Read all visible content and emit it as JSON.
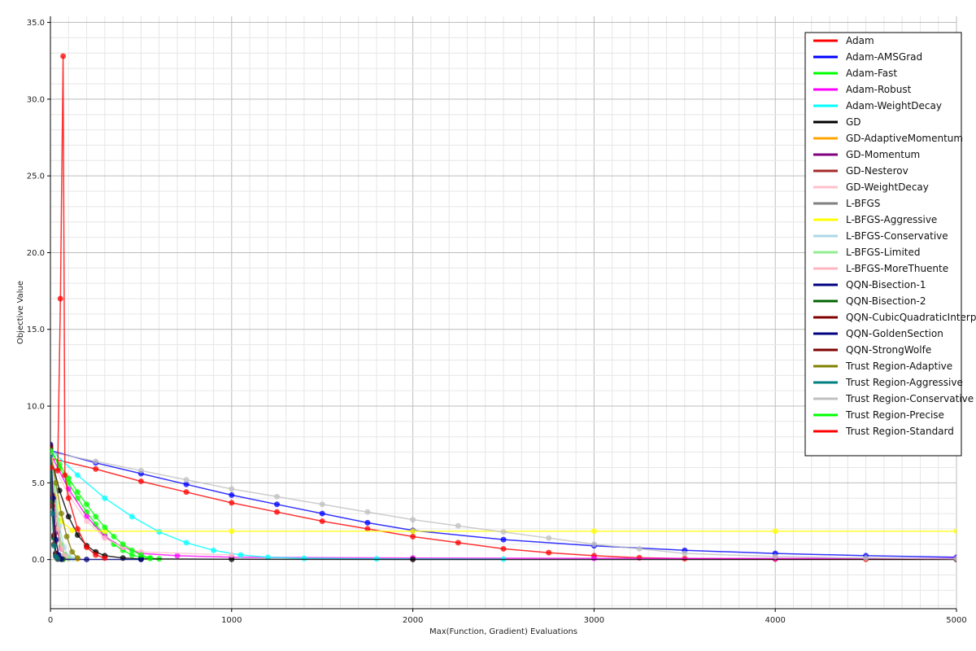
{
  "chart_data": {
    "type": "line",
    "title": "",
    "xlabel": "Max(Function, Gradient) Evaluations",
    "ylabel": "Objective Value",
    "xlim": [
      0,
      5000
    ],
    "ylim": [
      -3.2,
      35.4
    ],
    "x_ticks": [
      0,
      1000,
      2000,
      3000,
      4000,
      5000
    ],
    "x_tick_labels": [
      "0",
      "1000",
      "2000",
      "3000",
      "4000",
      "5000"
    ],
    "y_ticks": [
      0,
      5,
      10,
      15,
      20,
      25,
      30,
      35
    ],
    "y_tick_labels": [
      "0.0",
      "5.0",
      "10.0",
      "15.0",
      "20.0",
      "25.0",
      "30.0",
      "35.0"
    ],
    "grid": true,
    "legend_position": "top-right",
    "series": [
      {
        "name": "Adam",
        "color": "#ff0000",
        "points": [
          [
            0,
            6.6
          ],
          [
            250,
            5.9
          ],
          [
            500,
            5.1
          ],
          [
            750,
            4.4
          ],
          [
            1000,
            3.7
          ],
          [
            1250,
            3.1
          ],
          [
            1500,
            2.5
          ],
          [
            1750,
            2.0
          ],
          [
            2000,
            1.5
          ],
          [
            2250,
            1.1
          ],
          [
            2500,
            0.7
          ],
          [
            2750,
            0.45
          ],
          [
            3000,
            0.25
          ],
          [
            3250,
            0.12
          ],
          [
            3500,
            0.06
          ],
          [
            4000,
            0.03
          ],
          [
            4500,
            0.02
          ],
          [
            5000,
            0.02
          ]
        ]
      },
      {
        "name": "Adam-AMSGrad",
        "color": "#0000ff",
        "points": [
          [
            0,
            7.1
          ],
          [
            250,
            6.3
          ],
          [
            500,
            5.6
          ],
          [
            750,
            4.9
          ],
          [
            1000,
            4.2
          ],
          [
            1250,
            3.6
          ],
          [
            1500,
            3.0
          ],
          [
            1750,
            2.4
          ],
          [
            2000,
            1.9
          ],
          [
            2500,
            1.3
          ],
          [
            3000,
            0.9
          ],
          [
            3500,
            0.6
          ],
          [
            4000,
            0.4
          ],
          [
            4500,
            0.25
          ],
          [
            5000,
            0.15
          ]
        ]
      },
      {
        "name": "Adam-Fast",
        "color": "#00ff00",
        "points": [
          [
            0,
            7.3
          ],
          [
            50,
            6.0
          ],
          [
            100,
            5.0
          ],
          [
            150,
            4.0
          ],
          [
            200,
            3.1
          ],
          [
            250,
            2.3
          ],
          [
            300,
            1.6
          ],
          [
            350,
            1.0
          ],
          [
            400,
            0.6
          ],
          [
            450,
            0.3
          ],
          [
            500,
            0.15
          ],
          [
            550,
            0.08
          ],
          [
            600,
            0.05
          ]
        ]
      },
      {
        "name": "Adam-Robust",
        "color": "#ff00ff",
        "points": [
          [
            0,
            6.9
          ],
          [
            100,
            4.6
          ],
          [
            200,
            2.8
          ],
          [
            300,
            1.5
          ],
          [
            400,
            0.8
          ],
          [
            500,
            0.4
          ],
          [
            700,
            0.25
          ],
          [
            1000,
            0.15
          ],
          [
            2000,
            0.1
          ],
          [
            3000,
            0.08
          ],
          [
            4000,
            0.07
          ],
          [
            5000,
            0.07
          ]
        ]
      },
      {
        "name": "Adam-WeightDecay",
        "color": "#00ffff",
        "points": [
          [
            0,
            7.2
          ],
          [
            150,
            5.5
          ],
          [
            300,
            4.0
          ],
          [
            450,
            2.8
          ],
          [
            600,
            1.8
          ],
          [
            750,
            1.1
          ],
          [
            900,
            0.6
          ],
          [
            1050,
            0.3
          ],
          [
            1200,
            0.15
          ],
          [
            1400,
            0.08
          ],
          [
            1800,
            0.05
          ],
          [
            2500,
            0.03
          ]
        ]
      },
      {
        "name": "GD",
        "color": "#000000",
        "points": [
          [
            0,
            6.8
          ],
          [
            50,
            4.5
          ],
          [
            100,
            2.8
          ],
          [
            150,
            1.6
          ],
          [
            200,
            0.9
          ],
          [
            250,
            0.5
          ],
          [
            300,
            0.25
          ],
          [
            400,
            0.1
          ],
          [
            500,
            0.05
          ],
          [
            1000,
            0.02
          ],
          [
            2000,
            0.01
          ],
          [
            5000,
            0.01
          ]
        ]
      },
      {
        "name": "GD-AdaptiveMomentum",
        "color": "#ffa500",
        "points": [
          [
            0,
            6.5
          ],
          [
            20,
            4.0
          ],
          [
            40,
            2.0
          ],
          [
            60,
            0.8
          ],
          [
            80,
            0.3
          ],
          [
            100,
            0.1
          ],
          [
            150,
            0.05
          ]
        ]
      },
      {
        "name": "GD-Momentum",
        "color": "#800080",
        "points": [
          [
            0,
            6.7
          ],
          [
            20,
            3.8
          ],
          [
            40,
            1.8
          ],
          [
            60,
            0.7
          ],
          [
            80,
            0.25
          ],
          [
            100,
            0.08
          ]
        ]
      },
      {
        "name": "GD-Nesterov",
        "color": "#a52a2a",
        "points": [
          [
            0,
            6.9
          ],
          [
            20,
            4.1
          ],
          [
            40,
            2.1
          ],
          [
            60,
            0.9
          ],
          [
            80,
            0.3
          ],
          [
            100,
            0.1
          ]
        ]
      },
      {
        "name": "GD-WeightDecay",
        "color": "#ffc0cb",
        "points": [
          [
            0,
            6.6
          ],
          [
            100,
            4.2
          ],
          [
            200,
            2.5
          ],
          [
            300,
            1.4
          ],
          [
            400,
            0.8
          ],
          [
            500,
            0.5
          ],
          [
            1000,
            0.3
          ]
        ]
      },
      {
        "name": "L-BFGS",
        "color": "#808080",
        "points": [
          [
            0,
            6.3
          ],
          [
            15,
            3.5
          ],
          [
            30,
            1.2
          ],
          [
            45,
            0.3
          ],
          [
            60,
            0.05
          ]
        ]
      },
      {
        "name": "L-BFGS-Aggressive",
        "color": "#ffff00",
        "points": [
          [
            0,
            6.0
          ],
          [
            60,
            2.5
          ],
          [
            120,
            1.9
          ],
          [
            300,
            1.85
          ],
          [
            1000,
            1.85
          ],
          [
            2000,
            1.85
          ],
          [
            3000,
            1.85
          ],
          [
            4000,
            1.85
          ],
          [
            5000,
            1.85
          ]
        ]
      },
      {
        "name": "L-BFGS-Conservative",
        "color": "#add8e6",
        "points": [
          [
            0,
            6.8
          ],
          [
            25,
            4.5
          ],
          [
            50,
            2.2
          ],
          [
            75,
            0.8
          ],
          [
            100,
            0.2
          ],
          [
            125,
            0.05
          ]
        ]
      },
      {
        "name": "L-BFGS-Limited",
        "color": "#90ee90",
        "points": [
          [
            0,
            7.0
          ],
          [
            20,
            4.8
          ],
          [
            40,
            2.6
          ],
          [
            60,
            1.0
          ],
          [
            80,
            0.3
          ],
          [
            100,
            0.08
          ]
        ]
      },
      {
        "name": "L-BFGS-MoreThuente",
        "color": "#ffb6c1",
        "points": [
          [
            0,
            6.4
          ],
          [
            20,
            4.0
          ],
          [
            40,
            2.0
          ],
          [
            60,
            0.7
          ],
          [
            80,
            0.2
          ]
        ]
      },
      {
        "name": "QQN-Bisection-1",
        "color": "#000080",
        "points": [
          [
            0,
            7.2
          ],
          [
            10,
            4.0
          ],
          [
            20,
            1.5
          ],
          [
            30,
            0.4
          ],
          [
            40,
            0.08
          ],
          [
            60,
            0.02
          ],
          [
            200,
            0.01
          ],
          [
            500,
            0.01
          ]
        ]
      },
      {
        "name": "QQN-Bisection-2",
        "color": "#006400",
        "points": [
          [
            0,
            7.0
          ],
          [
            10,
            3.8
          ],
          [
            20,
            1.4
          ],
          [
            30,
            0.3
          ],
          [
            40,
            0.05
          ],
          [
            70,
            0.02
          ]
        ]
      },
      {
        "name": "QQN-CubicQuadraticInterpolation",
        "color": "#800000",
        "points": [
          [
            0,
            7.4
          ],
          [
            10,
            4.2
          ],
          [
            20,
            1.6
          ],
          [
            30,
            0.4
          ],
          [
            40,
            0.08
          ]
        ]
      },
      {
        "name": "QQN-GoldenSection",
        "color": "#000080",
        "points": [
          [
            0,
            7.5
          ],
          [
            15,
            4.0
          ],
          [
            30,
            1.3
          ],
          [
            45,
            0.3
          ],
          [
            60,
            0.05
          ]
        ]
      },
      {
        "name": "QQN-StrongWolfe",
        "color": "#800000",
        "points": [
          [
            0,
            7.3
          ],
          [
            10,
            3.5
          ],
          [
            20,
            1.0
          ],
          [
            30,
            0.2
          ],
          [
            40,
            0.03
          ]
        ]
      },
      {
        "name": "Trust Region-Adaptive",
        "color": "#808000",
        "points": [
          [
            0,
            6.9
          ],
          [
            30,
            5.0
          ],
          [
            60,
            3.0
          ],
          [
            90,
            1.5
          ],
          [
            120,
            0.5
          ],
          [
            150,
            0.1
          ]
        ]
      },
      {
        "name": "Trust Region-Aggressive",
        "color": "#008080",
        "points": [
          [
            0,
            6.8
          ],
          [
            10,
            3.0
          ],
          [
            20,
            0.9
          ],
          [
            30,
            0.2
          ],
          [
            40,
            0.05
          ]
        ]
      },
      {
        "name": "Trust Region-Conservative",
        "color": "#c0c0c0",
        "points": [
          [
            0,
            7.0
          ],
          [
            250,
            6.4
          ],
          [
            500,
            5.8
          ],
          [
            750,
            5.2
          ],
          [
            1000,
            4.6
          ],
          [
            1250,
            4.1
          ],
          [
            1500,
            3.6
          ],
          [
            1750,
            3.1
          ],
          [
            2000,
            2.6
          ],
          [
            2250,
            2.2
          ],
          [
            2500,
            1.8
          ],
          [
            2750,
            1.4
          ],
          [
            3000,
            1.0
          ],
          [
            3250,
            0.7
          ],
          [
            3500,
            0.4
          ],
          [
            4000,
            0.2
          ],
          [
            4500,
            0.1
          ],
          [
            5000,
            0.05
          ]
        ]
      },
      {
        "name": "Trust Region-Precise",
        "color": "#00ff00",
        "points": [
          [
            0,
            7.1
          ],
          [
            50,
            6.2
          ],
          [
            100,
            5.3
          ],
          [
            150,
            4.4
          ],
          [
            200,
            3.6
          ],
          [
            250,
            2.8
          ],
          [
            300,
            2.1
          ],
          [
            350,
            1.5
          ],
          [
            400,
            1.0
          ],
          [
            450,
            0.6
          ],
          [
            500,
            0.3
          ],
          [
            550,
            0.1
          ]
        ]
      },
      {
        "name": "Trust Region-Standard",
        "color": "#ff0000",
        "points": [
          [
            0,
            6.0
          ],
          [
            40,
            5.8
          ],
          [
            55,
            17.0
          ],
          [
            70,
            32.8
          ],
          [
            80,
            5.5
          ],
          [
            100,
            4.0
          ],
          [
            150,
            2.0
          ],
          [
            200,
            0.8
          ],
          [
            250,
            0.3
          ],
          [
            300,
            0.1
          ]
        ]
      }
    ]
  }
}
